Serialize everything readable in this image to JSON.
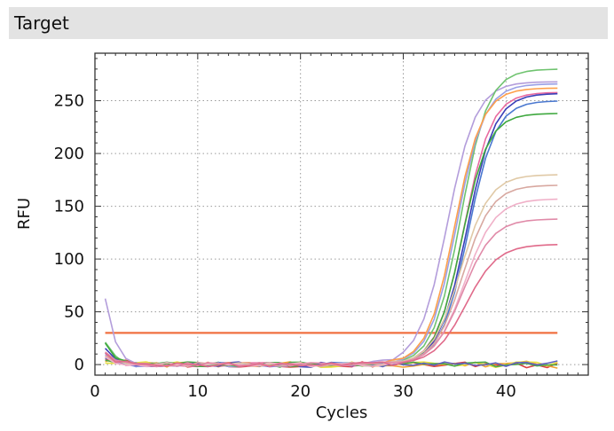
{
  "header": {
    "title": "Target"
  },
  "chart_data": {
    "type": "line",
    "title": "Target",
    "xlabel": "Cycles",
    "ylabel": "RFU",
    "xlim": [
      0,
      48
    ],
    "ylim": [
      -10,
      295
    ],
    "x_ticks": [
      0,
      10,
      20,
      30,
      40
    ],
    "y_ticks": [
      0,
      50,
      100,
      150,
      200,
      250
    ],
    "grid": true,
    "threshold": {
      "value": 30,
      "x_range": [
        1,
        45
      ],
      "color": "#f07040"
    },
    "amplification_series": [
      {
        "color": "#b39ddb",
        "plateau": 268,
        "midpoint": 34.3,
        "slope": 1.15,
        "start": 64
      },
      {
        "color": "#6fc36f",
        "plateau": 280,
        "midpoint": 35.6,
        "slope": 1.2,
        "start": 20
      },
      {
        "color": "#9aa0e6",
        "plateau": 266,
        "midpoint": 35.2,
        "slope": 1.2,
        "start": 8
      },
      {
        "color": "#ff9f4a",
        "plateau": 262,
        "midpoint": 35.0,
        "slope": 1.2,
        "start": 8
      },
      {
        "color": "#e86aa0",
        "plateau": 258,
        "midpoint": 35.9,
        "slope": 1.2,
        "start": 8
      },
      {
        "color": "#3a3fb8",
        "plateau": 257,
        "midpoint": 36.2,
        "slope": 1.18,
        "start": 15
      },
      {
        "color": "#4a78d0",
        "plateau": 250,
        "midpoint": 36.3,
        "slope": 1.2,
        "start": 12
      },
      {
        "color": "#3ea83e",
        "plateau": 238,
        "midpoint": 35.7,
        "slope": 1.25,
        "start": 20
      },
      {
        "color": "#e0c9a6",
        "plateau": 180,
        "midpoint": 35.6,
        "slope": 1.15,
        "start": 8
      },
      {
        "color": "#d8a8a0",
        "plateau": 170,
        "midpoint": 35.8,
        "slope": 1.15,
        "start": 8
      },
      {
        "color": "#f0b0c8",
        "plateau": 157,
        "midpoint": 36.0,
        "slope": 1.1,
        "start": 8
      },
      {
        "color": "#e08aa8",
        "plateau": 138,
        "midpoint": 35.8,
        "slope": 1.1,
        "start": 10
      },
      {
        "color": "#e06a8a",
        "plateau": 114,
        "midpoint": 36.1,
        "slope": 1.05,
        "start": 10
      }
    ],
    "baseline_series": [
      {
        "color": "#d84040",
        "seed": 3,
        "start": 6
      },
      {
        "color": "#f0a030",
        "seed": 7,
        "start": 5
      },
      {
        "color": "#e8e040",
        "seed": 11,
        "start": 4
      },
      {
        "color": "#4aa84a",
        "seed": 5,
        "start": 6
      },
      {
        "color": "#6060c0",
        "seed": 9,
        "start": 7
      }
    ]
  }
}
